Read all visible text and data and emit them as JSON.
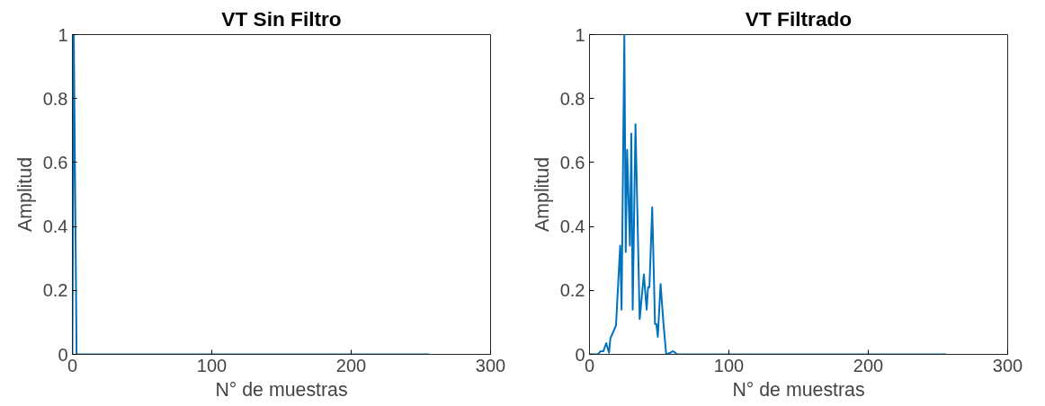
{
  "chart_data": [
    {
      "type": "line",
      "title": "VT Sin Filtro",
      "xlabel": "N° de muestras",
      "ylabel": "Amplitud",
      "series": [
        {
          "color": "#0072bd",
          "x": [
            0,
            1,
            3,
            256
          ],
          "values": [
            0,
            1,
            0,
            0
          ]
        }
      ],
      "xlim": [
        0,
        300
      ],
      "ylim": [
        0,
        1
      ],
      "xticks": [
        0,
        100,
        200,
        300
      ],
      "yticks": [
        0,
        0.2,
        0.4,
        0.6,
        0.8,
        1
      ],
      "grid": false,
      "marker": "none",
      "line_style": "solid"
    },
    {
      "type": "line",
      "title": "VT Filtrado",
      "xlabel": "N° de muestras",
      "ylabel": "Amplitud",
      "series": [
        {
          "color": "#0072bd",
          "x": [
            0,
            6,
            8,
            10,
            12,
            14,
            15,
            18,
            19,
            22,
            23,
            25,
            26,
            27,
            29,
            30,
            31,
            33,
            36,
            39,
            41,
            42,
            43,
            45,
            47,
            48,
            49,
            51,
            53,
            55,
            58,
            60,
            63,
            256
          ],
          "values": [
            0,
            0,
            0.01,
            0.01,
            0.035,
            0.005,
            0.05,
            0.08,
            0.09,
            0.34,
            0.14,
            1.0,
            0.32,
            0.64,
            0.34,
            0.69,
            0.14,
            0.72,
            0.11,
            0.25,
            0.14,
            0.21,
            0.21,
            0.46,
            0.095,
            0.095,
            0.055,
            0.22,
            0.1,
            0,
            0.005,
            0.01,
            0,
            0
          ]
        }
      ],
      "xlim": [
        0,
        300
      ],
      "ylim": [
        0,
        1
      ],
      "xticks": [
        0,
        100,
        200,
        300
      ],
      "yticks": [
        0,
        0.2,
        0.4,
        0.6,
        0.8,
        1
      ],
      "grid": false,
      "marker": "none",
      "line_style": "solid"
    }
  ]
}
